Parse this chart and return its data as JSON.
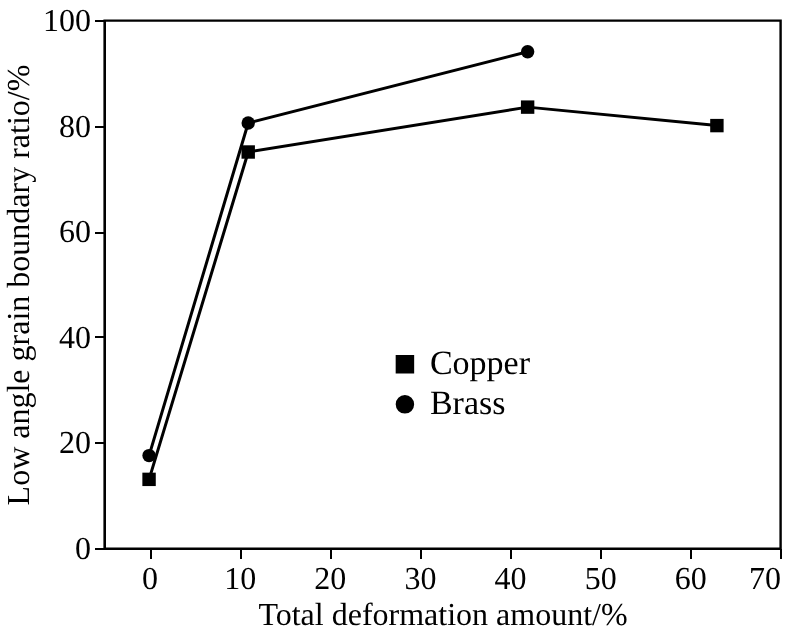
{
  "chart_data": {
    "type": "line",
    "xlabel": "Total deformation amount/%",
    "ylabel": "Low angle grain boundary ratio/%",
    "x": [
      0,
      11,
      42,
      63
    ],
    "series": [
      {
        "name": "Copper",
        "color": "#000000",
        "marker": "square",
        "values": [
          13,
          75,
          83.5,
          80
        ]
      },
      {
        "name": "Brass",
        "color": "#000000",
        "marker": "circle",
        "x": [
          0,
          11,
          42
        ],
        "values": [
          17.5,
          80.5,
          94
        ]
      }
    ],
    "xlim": [
      -5,
      70
    ],
    "xticks": [
      0,
      10,
      20,
      30,
      40,
      50,
      60,
      70
    ],
    "ylim": [
      0,
      100
    ],
    "yticks": [
      0,
      20,
      40,
      60,
      80,
      100
    ],
    "grid": false,
    "legend": "bottom",
    "line_style": "solid"
  }
}
